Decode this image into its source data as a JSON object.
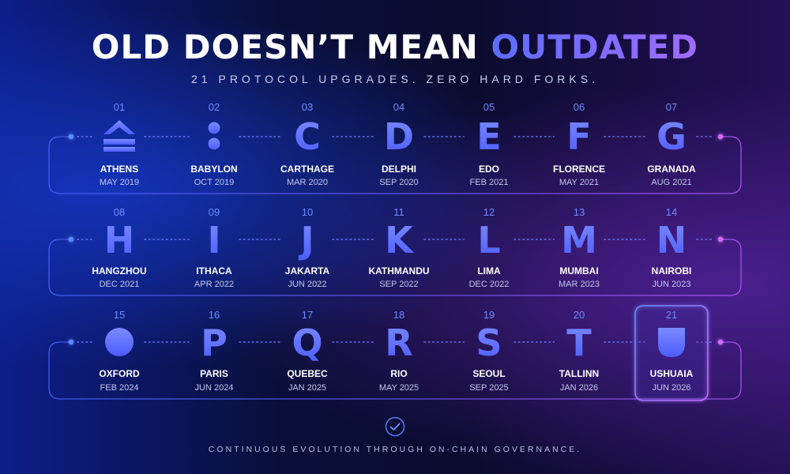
{
  "header": {
    "title_main": "OLD DOESN’T MEAN ",
    "title_accent": "OUTDATED",
    "subtitle": "21 PROTOCOL UPGRADES. ZERO HARD FORKS."
  },
  "upgrades": [
    {
      "num": "01",
      "name": "ATHENS",
      "date": "MAY 2019",
      "icon": "athens-icon"
    },
    {
      "num": "02",
      "name": "BABYLON",
      "date": "OCT 2019",
      "icon": "babylon-icon"
    },
    {
      "num": "03",
      "name": "CARTHAGE",
      "date": "MAR 2020",
      "icon": "carthage-icon"
    },
    {
      "num": "04",
      "name": "DELPHI",
      "date": "SEP 2020",
      "icon": "delphi-icon"
    },
    {
      "num": "05",
      "name": "EDO",
      "date": "FEB 2021",
      "icon": "edo-icon"
    },
    {
      "num": "06",
      "name": "FLORENCE",
      "date": "MAY 2021",
      "icon": "florence-icon"
    },
    {
      "num": "07",
      "name": "GRANADA",
      "date": "AUG 2021",
      "icon": "granada-icon"
    },
    {
      "num": "08",
      "name": "HANGZHOU",
      "date": "DEC 2021",
      "icon": "hangzhou-icon"
    },
    {
      "num": "09",
      "name": "ITHACA",
      "date": "APR 2022",
      "icon": "ithaca-icon"
    },
    {
      "num": "10",
      "name": "JAKARTA",
      "date": "JUN 2022",
      "icon": "jakarta-icon"
    },
    {
      "num": "11",
      "name": "KATHMANDU",
      "date": "SEP 2022",
      "icon": "kathmandu-icon"
    },
    {
      "num": "12",
      "name": "LIMA",
      "date": "DEC 2022",
      "icon": "lima-icon"
    },
    {
      "num": "13",
      "name": "MUMBAI",
      "date": "MAR 2023",
      "icon": "mumbai-icon"
    },
    {
      "num": "14",
      "name": "NAIROBI",
      "date": "JUN 2023",
      "icon": "nairobi-icon"
    },
    {
      "num": "15",
      "name": "OXFORD",
      "date": "FEB 2024",
      "icon": "oxford-icon"
    },
    {
      "num": "16",
      "name": "PARIS",
      "date": "JUN 2024",
      "icon": "paris-icon"
    },
    {
      "num": "17",
      "name": "QUEBEC",
      "date": "JAN 2025",
      "icon": "quebec-icon"
    },
    {
      "num": "18",
      "name": "RIO",
      "date": "MAY 2025",
      "icon": "rio-icon"
    },
    {
      "num": "19",
      "name": "SEOUL",
      "date": "SEP 2025",
      "icon": "seoul-icon"
    },
    {
      "num": "20",
      "name": "TALLINN",
      "date": "JAN 2026",
      "icon": "tallinn-icon"
    },
    {
      "num": "21",
      "name": "USHUAIA",
      "date": "JUN 2026",
      "icon": "ushuaia-icon"
    }
  ],
  "highlighted": "21",
  "footer": {
    "icon": "check-circle-icon",
    "text": "CONTINUOUS EVOLUTION THROUGH ON-CHAIN GOVERNANCE."
  },
  "colors": {
    "accent_blue": "#5b6dff",
    "accent_purple": "#a06bff",
    "number_blue": "#6f8bff",
    "line_blue": "#4a66ff",
    "line_purple": "#b45cff"
  }
}
